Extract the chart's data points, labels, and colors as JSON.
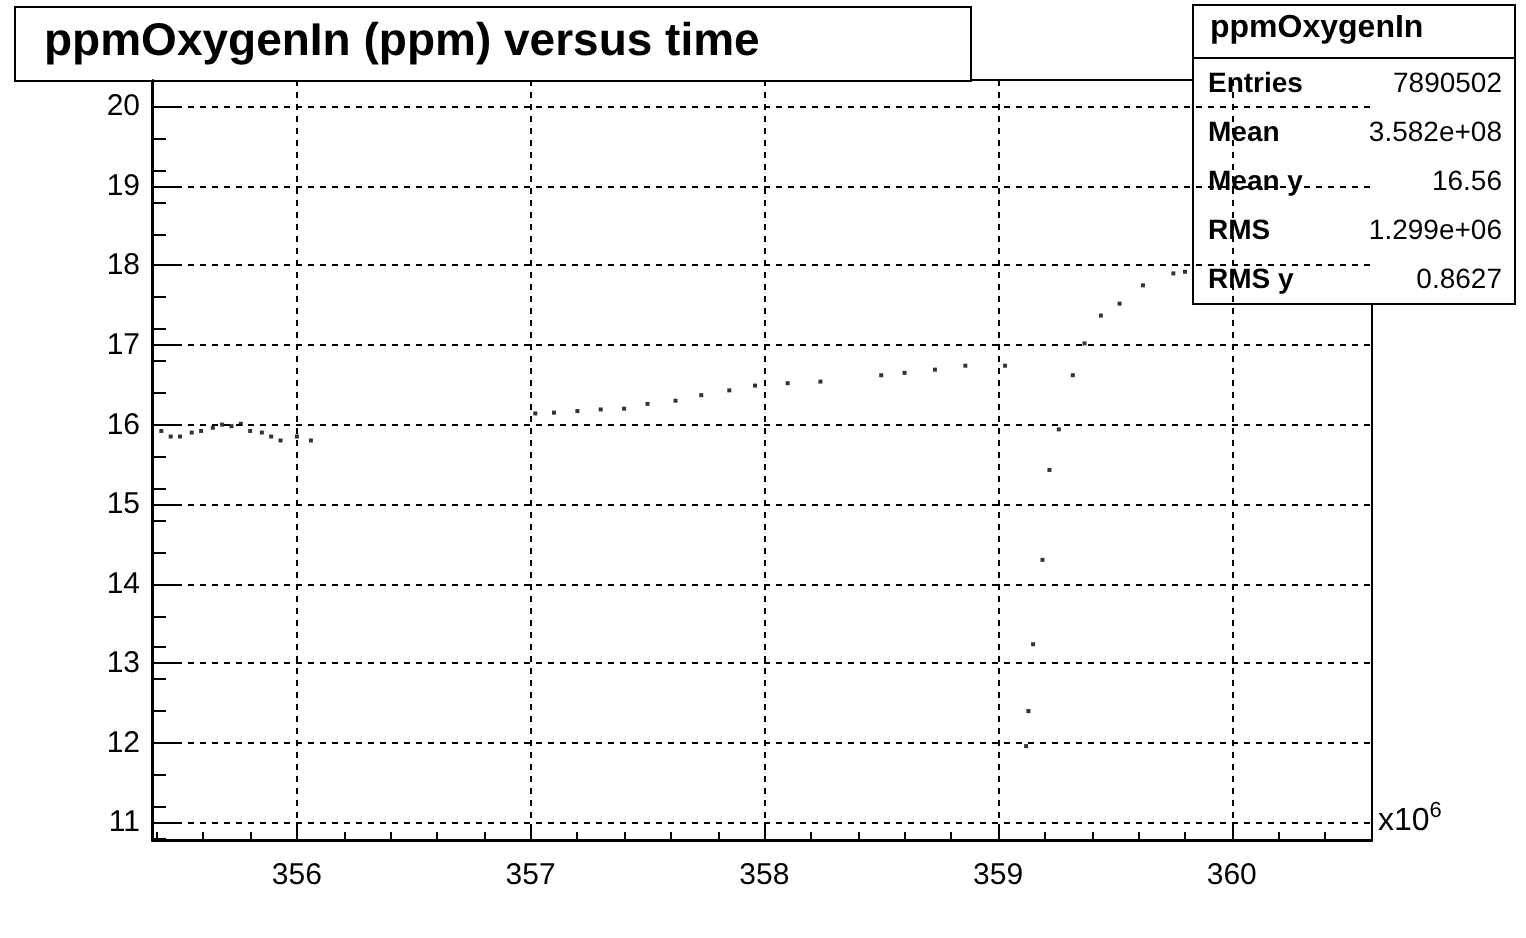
{
  "chart_data": {
    "type": "scatter",
    "title": "ppmOxygenIn (ppm) versus time",
    "x": [
      355.42,
      355.46,
      355.5,
      355.55,
      355.59,
      355.64,
      355.68,
      355.72,
      355.76,
      355.8,
      355.85,
      355.89,
      355.93,
      356.0,
      356.06,
      357.02,
      357.1,
      357.2,
      357.3,
      357.4,
      357.5,
      357.62,
      357.73,
      357.85,
      357.96,
      358.1,
      358.24,
      358.5,
      358.6,
      358.73,
      358.86,
      359.03,
      359.12,
      359.13,
      359.15,
      359.19,
      359.22,
      359.26,
      359.32,
      359.37,
      359.44,
      359.52,
      359.62,
      359.75,
      359.8
    ],
    "values": [
      15.92,
      15.85,
      15.85,
      15.9,
      15.92,
      15.96,
      16.0,
      15.98,
      16.01,
      15.92,
      15.9,
      15.85,
      15.8,
      15.85,
      15.8,
      16.14,
      16.15,
      16.17,
      16.19,
      16.2,
      16.26,
      16.3,
      16.37,
      16.43,
      16.49,
      16.52,
      16.54,
      16.62,
      16.65,
      16.69,
      16.74,
      16.74,
      11.96,
      12.4,
      13.24,
      14.3,
      15.43,
      15.94,
      16.62,
      17.02,
      17.37,
      17.52,
      17.75,
      17.9,
      17.92
    ],
    "color": "#000000",
    "marker": "square",
    "xlim": [
      355.38,
      360.6
    ],
    "xticks": [
      356,
      357,
      358,
      359,
      360
    ],
    "ylim": [
      10.78,
      20.33
    ],
    "yticks": [
      11,
      12,
      13,
      14,
      15,
      16,
      17,
      18,
      19,
      20
    ],
    "grid": true,
    "annotations": [
      "x10$^{6}$",
      "ppmOxygenIn",
      "Entries",
      "7890502",
      "Mean",
      "3.582e+08",
      "Mean y",
      "16.56",
      "RMS",
      "1.299e+06",
      "RMS y",
      "0.8627"
    ]
  }
}
